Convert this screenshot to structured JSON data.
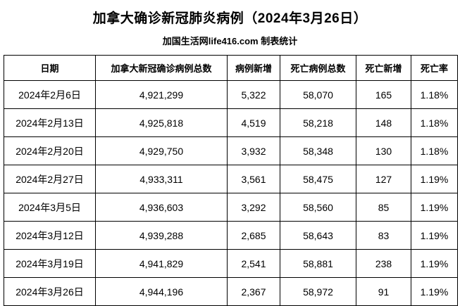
{
  "title": "加拿大确诊新冠肺炎病例（2024年3月26日）",
  "subtitle": "加国生活网life416.com 制表统计",
  "colors": {
    "background": "#ffffff",
    "text": "#000000",
    "border": "#000000"
  },
  "chart_data": {
    "type": "table",
    "title": "加拿大确诊新冠肺炎病例（2024年3月26日）",
    "subtitle": "加国生活网life416.com 制表统计",
    "columns": [
      "日期",
      "加拿大新冠确诊病例总数",
      "病例新增",
      "死亡病例总数",
      "死亡新增",
      "死亡率"
    ],
    "rows": [
      [
        "2024年2月6日",
        "4,921,299",
        "5,322",
        "58,070",
        "165",
        "1.18%"
      ],
      [
        "2024年2月13日",
        "4,925,818",
        "4,519",
        "58,218",
        "148",
        "1.18%"
      ],
      [
        "2024年2月20日",
        "4,929,750",
        "3,932",
        "58,348",
        "130",
        "1.18%"
      ],
      [
        "2024年2月27日",
        "4,933,311",
        "3,561",
        "58,475",
        "127",
        "1.19%"
      ],
      [
        "2024年3月5日",
        "4,936,603",
        "3,292",
        "58,560",
        "85",
        "1.19%"
      ],
      [
        "2024年3月12日",
        "4,939,288",
        "2,685",
        "58,643",
        "83",
        "1.19%"
      ],
      [
        "2024年3月19日",
        "4,941,829",
        "2,541",
        "58,881",
        "238",
        "1.19%"
      ],
      [
        "2024年3月26日",
        "4,944,196",
        "2,367",
        "58,972",
        "91",
        "1.19%"
      ]
    ]
  }
}
